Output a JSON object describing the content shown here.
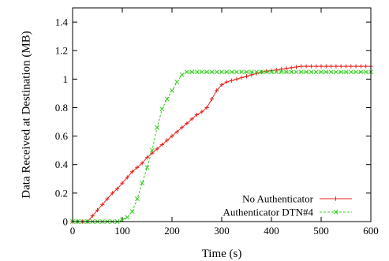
{
  "chart_data": {
    "type": "line",
    "title": "",
    "xlabel": "Time (s)",
    "ylabel": "Data Received at Destination (MB)",
    "xlim": [
      0,
      600
    ],
    "ylim": [
      0,
      1.5
    ],
    "x_ticks": [
      0,
      100,
      200,
      300,
      400,
      500,
      600
    ],
    "x_tick_labels": [
      "0",
      "100",
      "200",
      "300",
      "400",
      "500",
      "600"
    ],
    "y_ticks": [
      0,
      0.2,
      0.4,
      0.6,
      0.8,
      1.0,
      1.2,
      1.4
    ],
    "y_tick_labels": [
      "0",
      "0.2",
      "0.4",
      "0.6",
      "0.8",
      "1",
      "1.2",
      "1.4"
    ],
    "grid": false,
    "legend_position": "bottom-right",
    "series": [
      {
        "name": "No Authenticator",
        "color": "#e8231f",
        "marker": "plus",
        "line_style": "solid",
        "x": [
          0,
          10,
          20,
          30,
          40,
          50,
          60,
          70,
          80,
          90,
          100,
          110,
          120,
          130,
          140,
          150,
          160,
          170,
          180,
          190,
          200,
          210,
          220,
          230,
          240,
          250,
          260,
          270,
          280,
          290,
          300,
          310,
          320,
          330,
          340,
          350,
          360,
          370,
          380,
          390,
          400,
          410,
          420,
          430,
          440,
          450,
          460,
          470,
          480,
          490,
          500,
          510,
          520,
          530,
          540,
          550,
          560,
          570,
          580,
          590,
          600
        ],
        "y": [
          0,
          0,
          0,
          0,
          0.04,
          0.08,
          0.12,
          0.16,
          0.2,
          0.23,
          0.27,
          0.31,
          0.35,
          0.38,
          0.41,
          0.45,
          0.48,
          0.51,
          0.54,
          0.57,
          0.6,
          0.63,
          0.66,
          0.69,
          0.72,
          0.75,
          0.77,
          0.8,
          0.86,
          0.92,
          0.96,
          0.98,
          0.99,
          1.0,
          1.01,
          1.02,
          1.03,
          1.04,
          1.05,
          1.055,
          1.06,
          1.065,
          1.07,
          1.075,
          1.08,
          1.085,
          1.09,
          1.09,
          1.09,
          1.09,
          1.09,
          1.09,
          1.09,
          1.09,
          1.09,
          1.09,
          1.09,
          1.09,
          1.09,
          1.09,
          1.09
        ]
      },
      {
        "name": "Authenticator DTN#4",
        "color": "#33cc1f",
        "marker": "x",
        "line_style": "dashed",
        "x": [
          0,
          10,
          20,
          30,
          40,
          50,
          60,
          70,
          80,
          90,
          100,
          110,
          120,
          130,
          140,
          150,
          160,
          170,
          180,
          190,
          200,
          210,
          220,
          230,
          240,
          250,
          260,
          270,
          280,
          290,
          300,
          310,
          320,
          330,
          340,
          350,
          360,
          370,
          380,
          390,
          400,
          410,
          420,
          430,
          440,
          450,
          460,
          470,
          480,
          490,
          500,
          510,
          520,
          530,
          540,
          550,
          560,
          570,
          580,
          590,
          600
        ],
        "y": [
          0,
          0,
          0,
          0,
          0,
          0,
          0,
          0,
          0,
          0,
          0.01,
          0.03,
          0.07,
          0.16,
          0.27,
          0.38,
          0.5,
          0.66,
          0.79,
          0.86,
          0.92,
          0.98,
          1.03,
          1.05,
          1.05,
          1.05,
          1.05,
          1.05,
          1.05,
          1.05,
          1.05,
          1.05,
          1.05,
          1.05,
          1.05,
          1.05,
          1.05,
          1.05,
          1.05,
          1.05,
          1.05,
          1.05,
          1.05,
          1.05,
          1.05,
          1.05,
          1.05,
          1.05,
          1.05,
          1.05,
          1.05,
          1.05,
          1.05,
          1.05,
          1.05,
          1.05,
          1.05,
          1.05,
          1.05,
          1.05,
          1.05
        ]
      }
    ]
  }
}
